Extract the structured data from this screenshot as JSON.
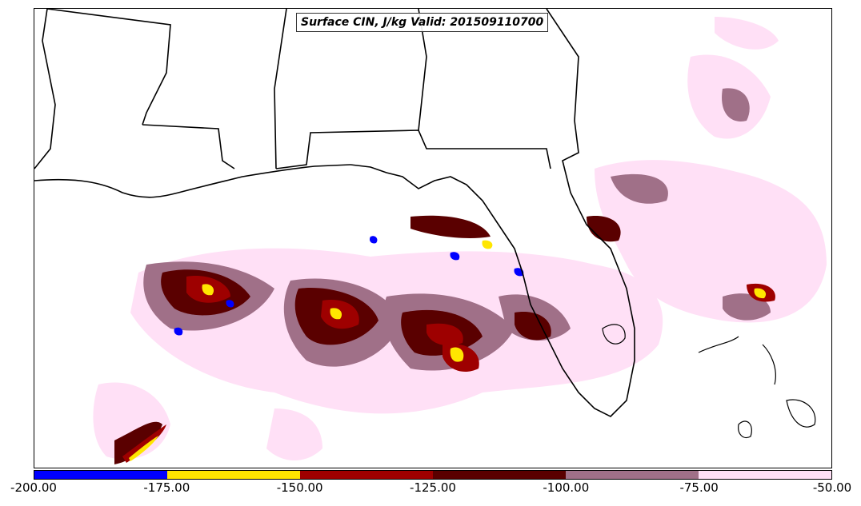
{
  "title": "Surface CIN, J/kg Valid: 201509110700",
  "colorbar": {
    "segments": [
      {
        "color": "#0000ff"
      },
      {
        "color": "#ffe600"
      },
      {
        "color": "#9e0000"
      },
      {
        "color": "#5a0000"
      },
      {
        "color": "#a07088"
      },
      {
        "color": "#ffe0f6"
      }
    ],
    "labels": [
      "-200.00",
      "-175.00",
      "-150.00",
      "-125.00",
      "-100.00",
      "-75.00",
      "-50.00"
    ]
  },
  "palette": {
    "blue": "#0000ff",
    "yellow": "#ffe600",
    "red": "#9e0000",
    "darkred": "#5a0000",
    "mauve": "#a07088",
    "pink": "#ffe0f6",
    "boundaries": "#000000"
  }
}
